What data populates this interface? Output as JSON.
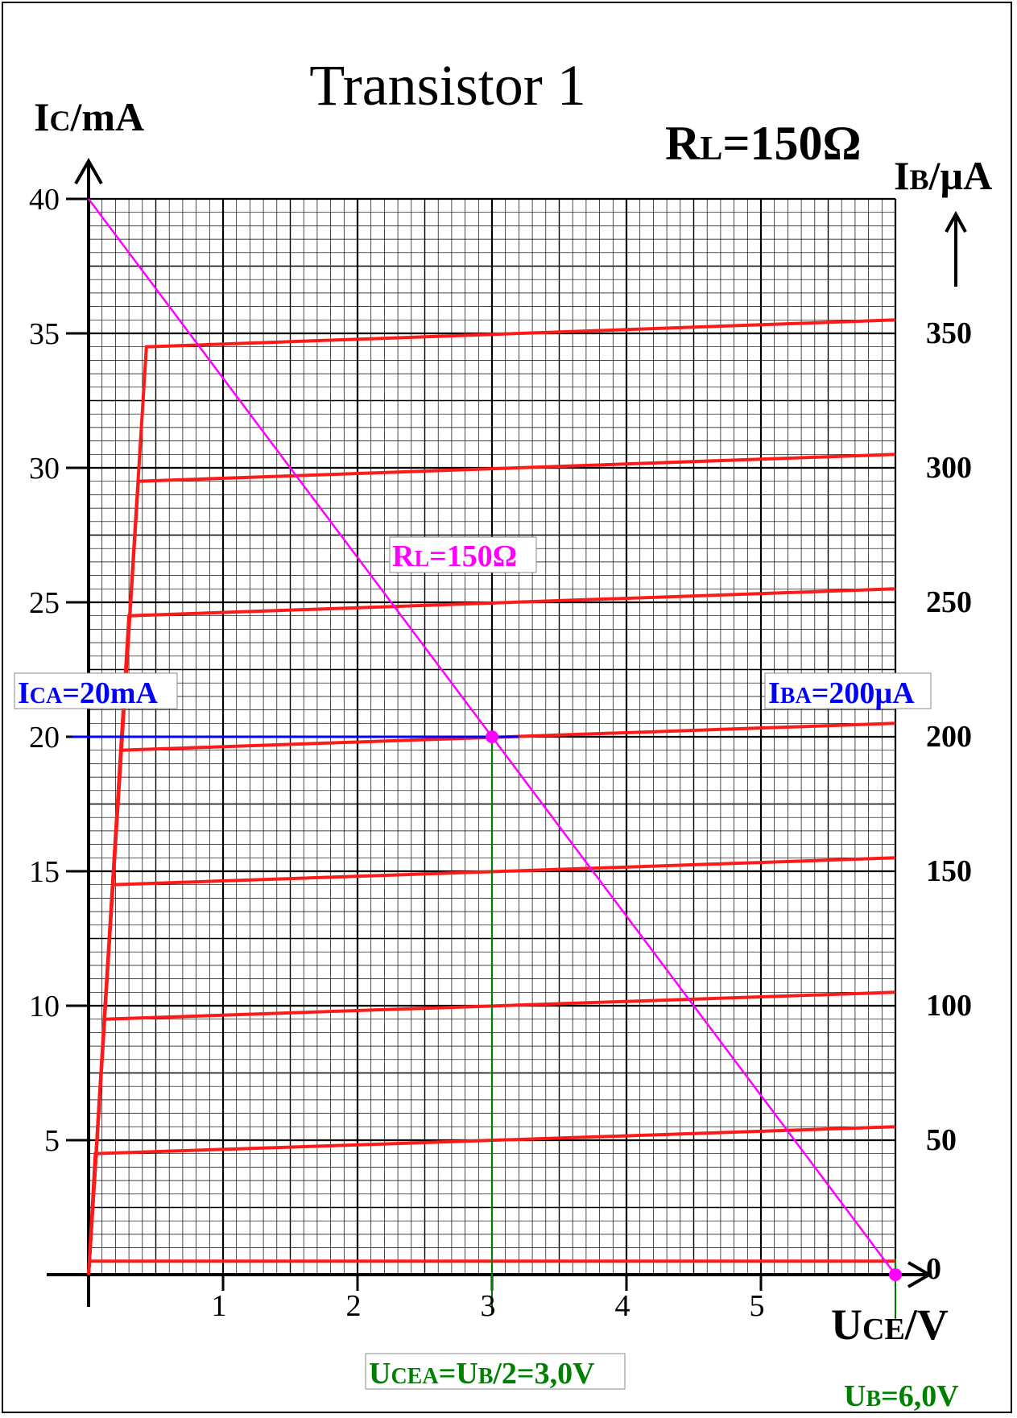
{
  "chart_data": {
    "type": "line",
    "title": "Transistor 1",
    "subtitle": {
      "main": "R",
      "sub": "L",
      "rest": "=150Ω"
    },
    "ylabel": {
      "main": "I",
      "sub": "C",
      "rest": "/mA"
    },
    "xlabel": {
      "main": "U",
      "sub": "CE",
      "rest": "/V"
    },
    "y2label": {
      "main": "I",
      "sub": "B",
      "rest": "/µA"
    },
    "xlim": [
      0,
      6
    ],
    "ylim": [
      0,
      40
    ],
    "y2lim": [
      0,
      400
    ],
    "x_ticks": [
      "1",
      "2",
      "3",
      "4",
      "5"
    ],
    "y_ticks": [
      "5",
      "10",
      "15",
      "20",
      "25",
      "30",
      "35",
      "40"
    ],
    "y2_ticks": [
      "0",
      "50",
      "100",
      "150",
      "200",
      "250",
      "300",
      "350"
    ],
    "grid": true,
    "colors": {
      "curves": "#ff1a1a",
      "load_line": "#ff00ff",
      "operating_current": "#0000ff",
      "operating_voltage": "#008000",
      "annotation_current": "#0000ff",
      "annotation_voltage": "#008000",
      "annotation_load": "#ff00ff"
    },
    "series": [
      {
        "ib": 0,
        "points": [
          [
            0,
            0.5
          ],
          [
            6,
            0.5
          ]
        ]
      },
      {
        "ib": 50,
        "points": [
          [
            0,
            0
          ],
          [
            0.05,
            4.5
          ],
          [
            6,
            5.5
          ]
        ]
      },
      {
        "ib": 100,
        "points": [
          [
            0,
            0
          ],
          [
            0.12,
            9.5
          ],
          [
            6,
            10.5
          ]
        ]
      },
      {
        "ib": 150,
        "points": [
          [
            0,
            0
          ],
          [
            0.18,
            14.5
          ],
          [
            6,
            15.5
          ]
        ]
      },
      {
        "ib": 200,
        "points": [
          [
            0,
            0
          ],
          [
            0.24,
            19.5
          ],
          [
            6,
            20.5
          ]
        ]
      },
      {
        "ib": 250,
        "points": [
          [
            0,
            0
          ],
          [
            0.3,
            24.5
          ],
          [
            6,
            25.5
          ]
        ]
      },
      {
        "ib": 300,
        "points": [
          [
            0,
            0
          ],
          [
            0.37,
            29.5
          ],
          [
            6,
            30.5
          ]
        ]
      },
      {
        "ib": 350,
        "points": [
          [
            0,
            0
          ],
          [
            0.43,
            34.5
          ],
          [
            6,
            35.5
          ]
        ]
      }
    ],
    "load_line": {
      "points": [
        [
          0,
          40
        ],
        [
          6,
          0
        ]
      ]
    },
    "operating_point": {
      "x": 3,
      "y": 20
    },
    "supply_point": {
      "x": 6,
      "y": 0
    },
    "annotations": {
      "ica": {
        "main": "I",
        "sub": "CA",
        "rest": "=20mA"
      },
      "iba": {
        "main": "I",
        "sub": "BA",
        "rest": "=200µA"
      },
      "rl_line": {
        "main": "R",
        "sub": "L",
        "rest": "=150Ω"
      },
      "ucea": [
        {
          "t": "U",
          "sub": false
        },
        {
          "t": "CEA",
          "sub": true
        },
        {
          "t": "=U",
          "sub": false
        },
        {
          "t": "B",
          "sub": true
        },
        {
          "t": "/2=3,0V",
          "sub": false
        }
      ],
      "ub": {
        "main": "U",
        "sub": "B",
        "rest": "=6,0V"
      }
    }
  }
}
